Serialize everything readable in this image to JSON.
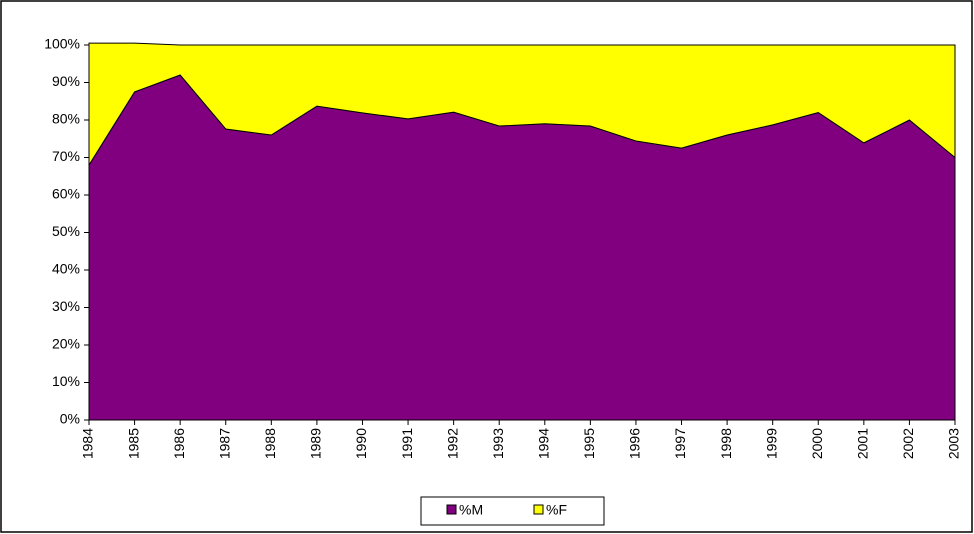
{
  "chart_data": {
    "type": "stacked-area",
    "x": [
      1984,
      1985,
      1986,
      1987,
      1988,
      1989,
      1990,
      1991,
      1992,
      1993,
      1994,
      1995,
      1996,
      1997,
      1998,
      1999,
      2000,
      2001,
      2002,
      2003
    ],
    "series": [
      {
        "name": "%M",
        "color": "#800080",
        "values": [
          68,
          87.5,
          92,
          77.6,
          76,
          83.7,
          81.9,
          80.3,
          82.1,
          78.4,
          79,
          78.4,
          74.4,
          72.5,
          76,
          78.7,
          82,
          73.9,
          80,
          70
        ]
      },
      {
        "name": "%F",
        "color": "#ffff00",
        "values": [
          32.5,
          13,
          8,
          22.4,
          24,
          16.3,
          18.1,
          19.7,
          17.9,
          21.6,
          21,
          21.6,
          25.6,
          27.5,
          24,
          21.3,
          18,
          26.1,
          20,
          30
        ]
      }
    ],
    "ylim": [
      0,
      100
    ],
    "yticks": [
      {
        "value": 0,
        "label": "0%"
      },
      {
        "value": 10,
        "label": "10%"
      },
      {
        "value": 20,
        "label": "20%"
      },
      {
        "value": 30,
        "label": "30%"
      },
      {
        "value": 40,
        "label": "40%"
      },
      {
        "value": 50,
        "label": "50%"
      },
      {
        "value": 60,
        "label": "60%"
      },
      {
        "value": 70,
        "label": "70%"
      },
      {
        "value": 80,
        "label": "80%"
      },
      {
        "value": 90,
        "label": "90%"
      },
      {
        "value": 100,
        "label": "100%"
      }
    ],
    "grid": false,
    "legend": "bottom"
  }
}
